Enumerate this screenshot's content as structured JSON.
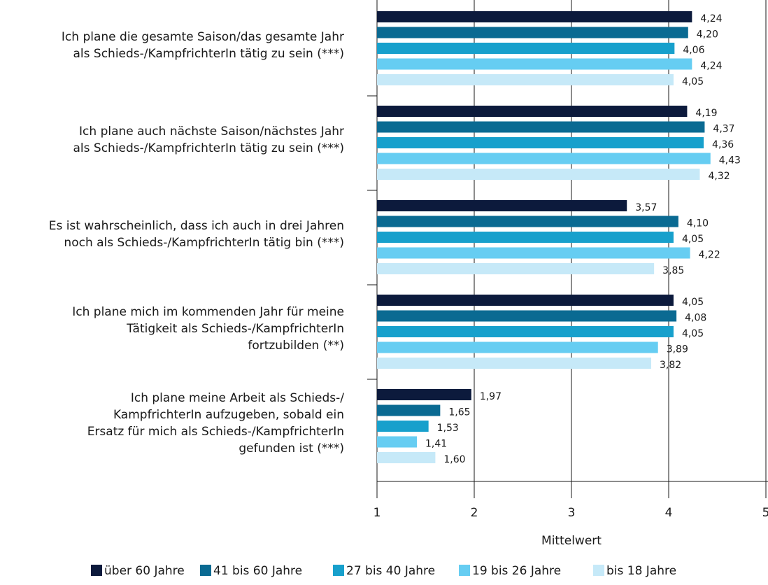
{
  "chart_data": {
    "type": "bar",
    "orientation": "horizontal",
    "categories": [
      [
        "Ich plane die gesamte Saison/das gesamte Jahr",
        "als Schieds-/KampfrichterIn tätig zu sein (***)"
      ],
      [
        "Ich plane auch nächste Saison/nächstes Jahr",
        "als Schieds-/KampfrichterIn tätig zu sein (***)"
      ],
      [
        "Es ist wahrscheinlich, dass ich auch in drei Jahren",
        "noch als Schieds-/KampfrichterIn tätig bin (***)"
      ],
      [
        "Ich plane mich im kommenden Jahr für meine",
        "Tätigkeit als Schieds-/KampfrichterIn",
        "fortzubilden (**)"
      ],
      [
        "Ich plane meine Arbeit als Schieds-/",
        "KampfrichterIn aufzugeben, sobald ein",
        "Ersatz für mich als Schieds-/KampfrichterIn",
        "gefunden ist (***)"
      ]
    ],
    "series": [
      {
        "name": "über 60 Jahre",
        "color": "#0c1a3c",
        "values": [
          4.24,
          4.19,
          3.57,
          4.05,
          1.97
        ],
        "value_labels": [
          "4,24",
          "4,19",
          "3,57",
          "4,05",
          "1,97"
        ]
      },
      {
        "name": "41 bis 60 Jahre",
        "color": "#0a6a92",
        "values": [
          4.2,
          4.37,
          4.1,
          4.08,
          1.65
        ],
        "value_labels": [
          "4,20",
          "4,37",
          "4,10",
          "4,08",
          "1,65"
        ]
      },
      {
        "name": "27 bis 40 Jahre",
        "color": "#17a0cc",
        "values": [
          4.06,
          4.36,
          4.05,
          4.05,
          1.53
        ],
        "value_labels": [
          "4,06",
          "4,36",
          "4,05",
          "4,05",
          "1,53"
        ]
      },
      {
        "name": "19 bis 26 Jahre",
        "color": "#66cdf2",
        "values": [
          4.24,
          4.43,
          4.22,
          3.89,
          1.41
        ],
        "value_labels": [
          "4,24",
          "4,43",
          "4,22",
          "3,89",
          "1,41"
        ]
      },
      {
        "name": "bis 18 Jahre",
        "color": "#c6e9f8",
        "values": [
          4.05,
          4.32,
          3.85,
          3.82,
          1.6
        ],
        "value_labels": [
          "4,05",
          "4,32",
          "3,85",
          "3,82",
          "1,60"
        ]
      }
    ],
    "xlabel": "Mittelwert",
    "xlim": [
      1,
      5
    ],
    "xticks": [
      1,
      2,
      3,
      4,
      5
    ],
    "grid": true
  }
}
